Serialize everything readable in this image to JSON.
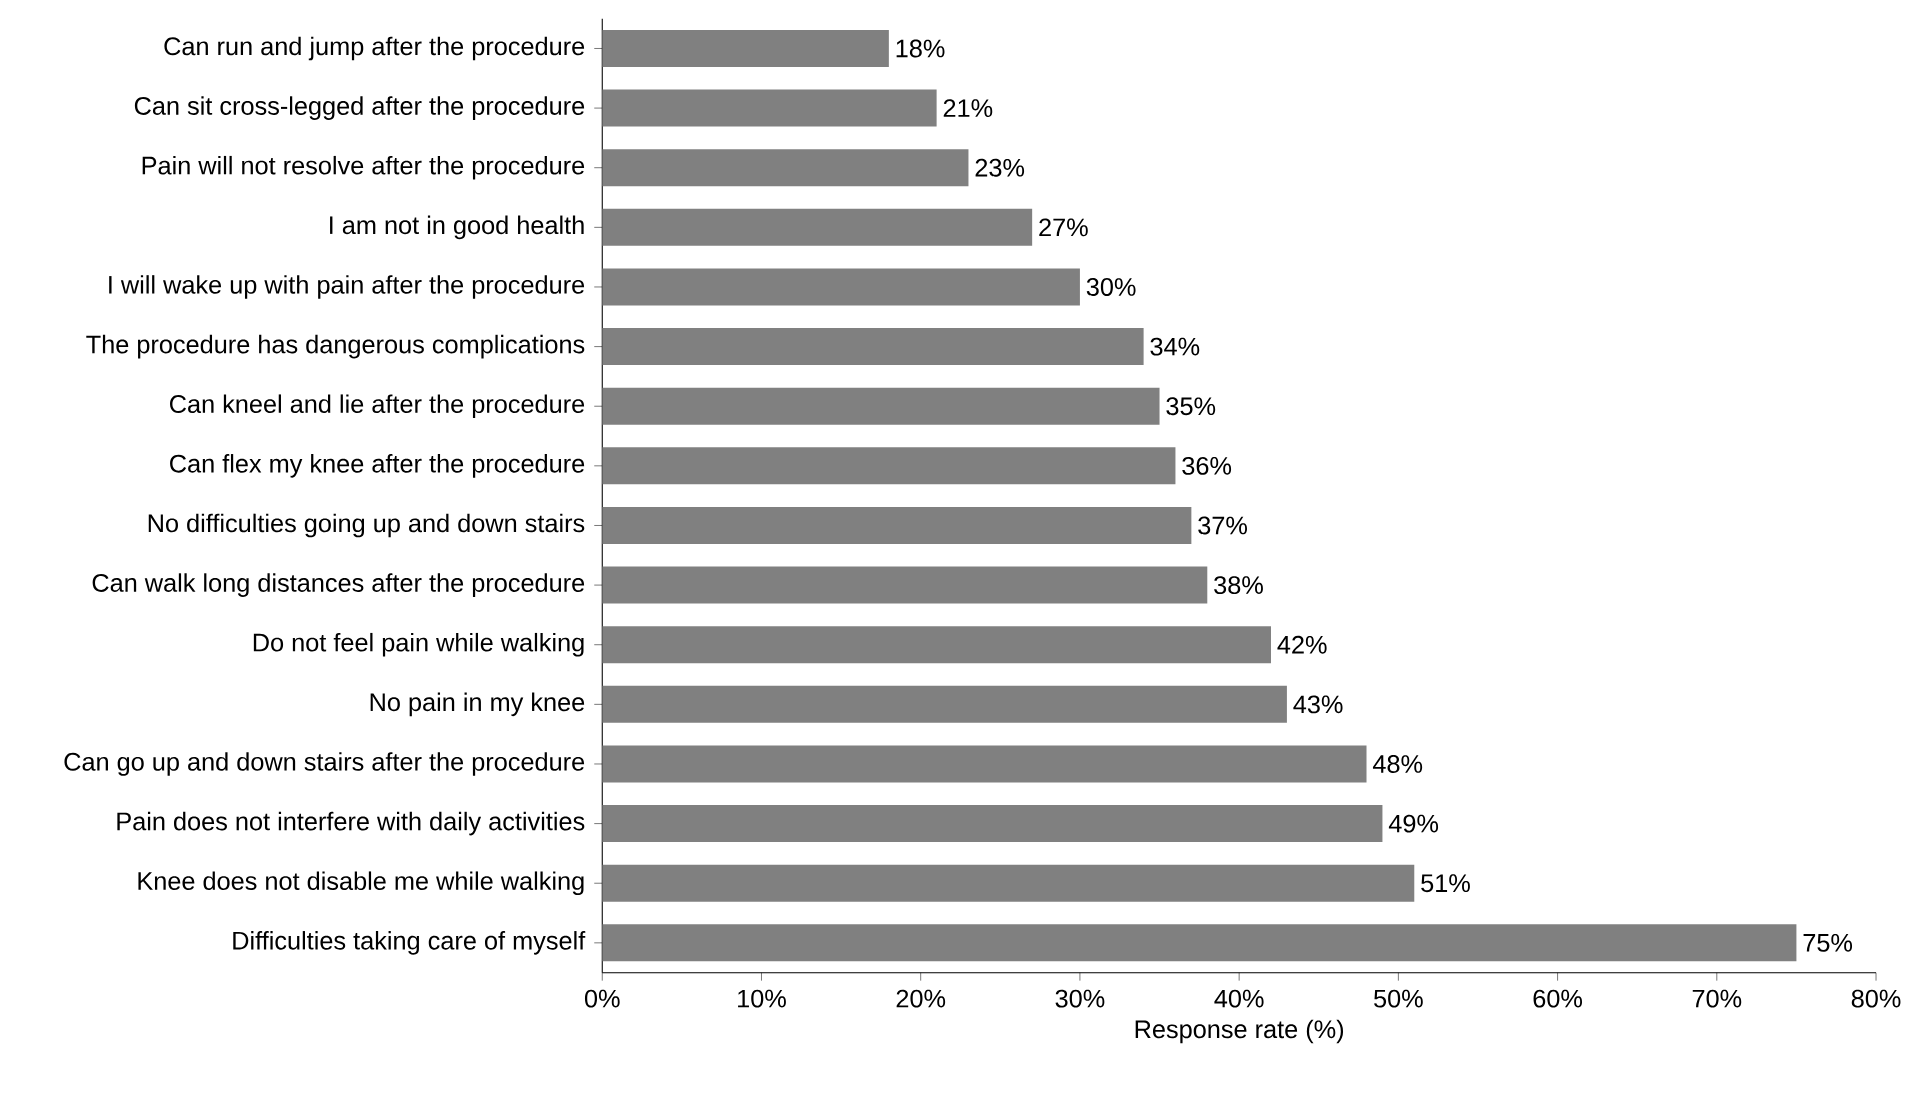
{
  "chart_data": {
    "type": "bar",
    "orientation": "horizontal",
    "xlabel": "Response rate (%)",
    "categories": [
      "Can run and jump after the procedure",
      "Can sit cross-legged after the procedure",
      "Pain will not resolve after the procedure",
      "I am not in good health",
      "I will wake up with pain after the procedure",
      "The procedure has dangerous complications",
      "Can kneel and lie after the procedure",
      "Can flex my knee after the procedure",
      "No difficulties going up and down stairs",
      "Can walk long distances after the procedure",
      "Do not feel pain while walking",
      "No pain in my knee",
      "Can go up and down stairs after the procedure",
      "Pain does not interfere with daily activities",
      "Knee does not disable me while walking",
      "Difficulties taking care of myself"
    ],
    "values": [
      18,
      21,
      23,
      27,
      30,
      34,
      35,
      36,
      37,
      38,
      42,
      43,
      48,
      49,
      51,
      75
    ],
    "value_labels": [
      "18%",
      "21%",
      "23%",
      "27%",
      "30%",
      "34%",
      "35%",
      "36%",
      "37%",
      "38%",
      "42%",
      "43%",
      "48%",
      "49%",
      "51%",
      "75%"
    ],
    "color": "#808080",
    "xlim": [
      0,
      80
    ],
    "xticks": [
      {
        "value": 0,
        "label": "0%"
      },
      {
        "value": 10,
        "label": "10%"
      },
      {
        "value": 20,
        "label": "20%"
      },
      {
        "value": 30,
        "label": "30%"
      },
      {
        "value": 40,
        "label": "40%"
      },
      {
        "value": 50,
        "label": "50%"
      },
      {
        "value": 60,
        "label": "60%"
      },
      {
        "value": 70,
        "label": "70%"
      },
      {
        "value": 80,
        "label": "80%"
      }
    ]
  }
}
